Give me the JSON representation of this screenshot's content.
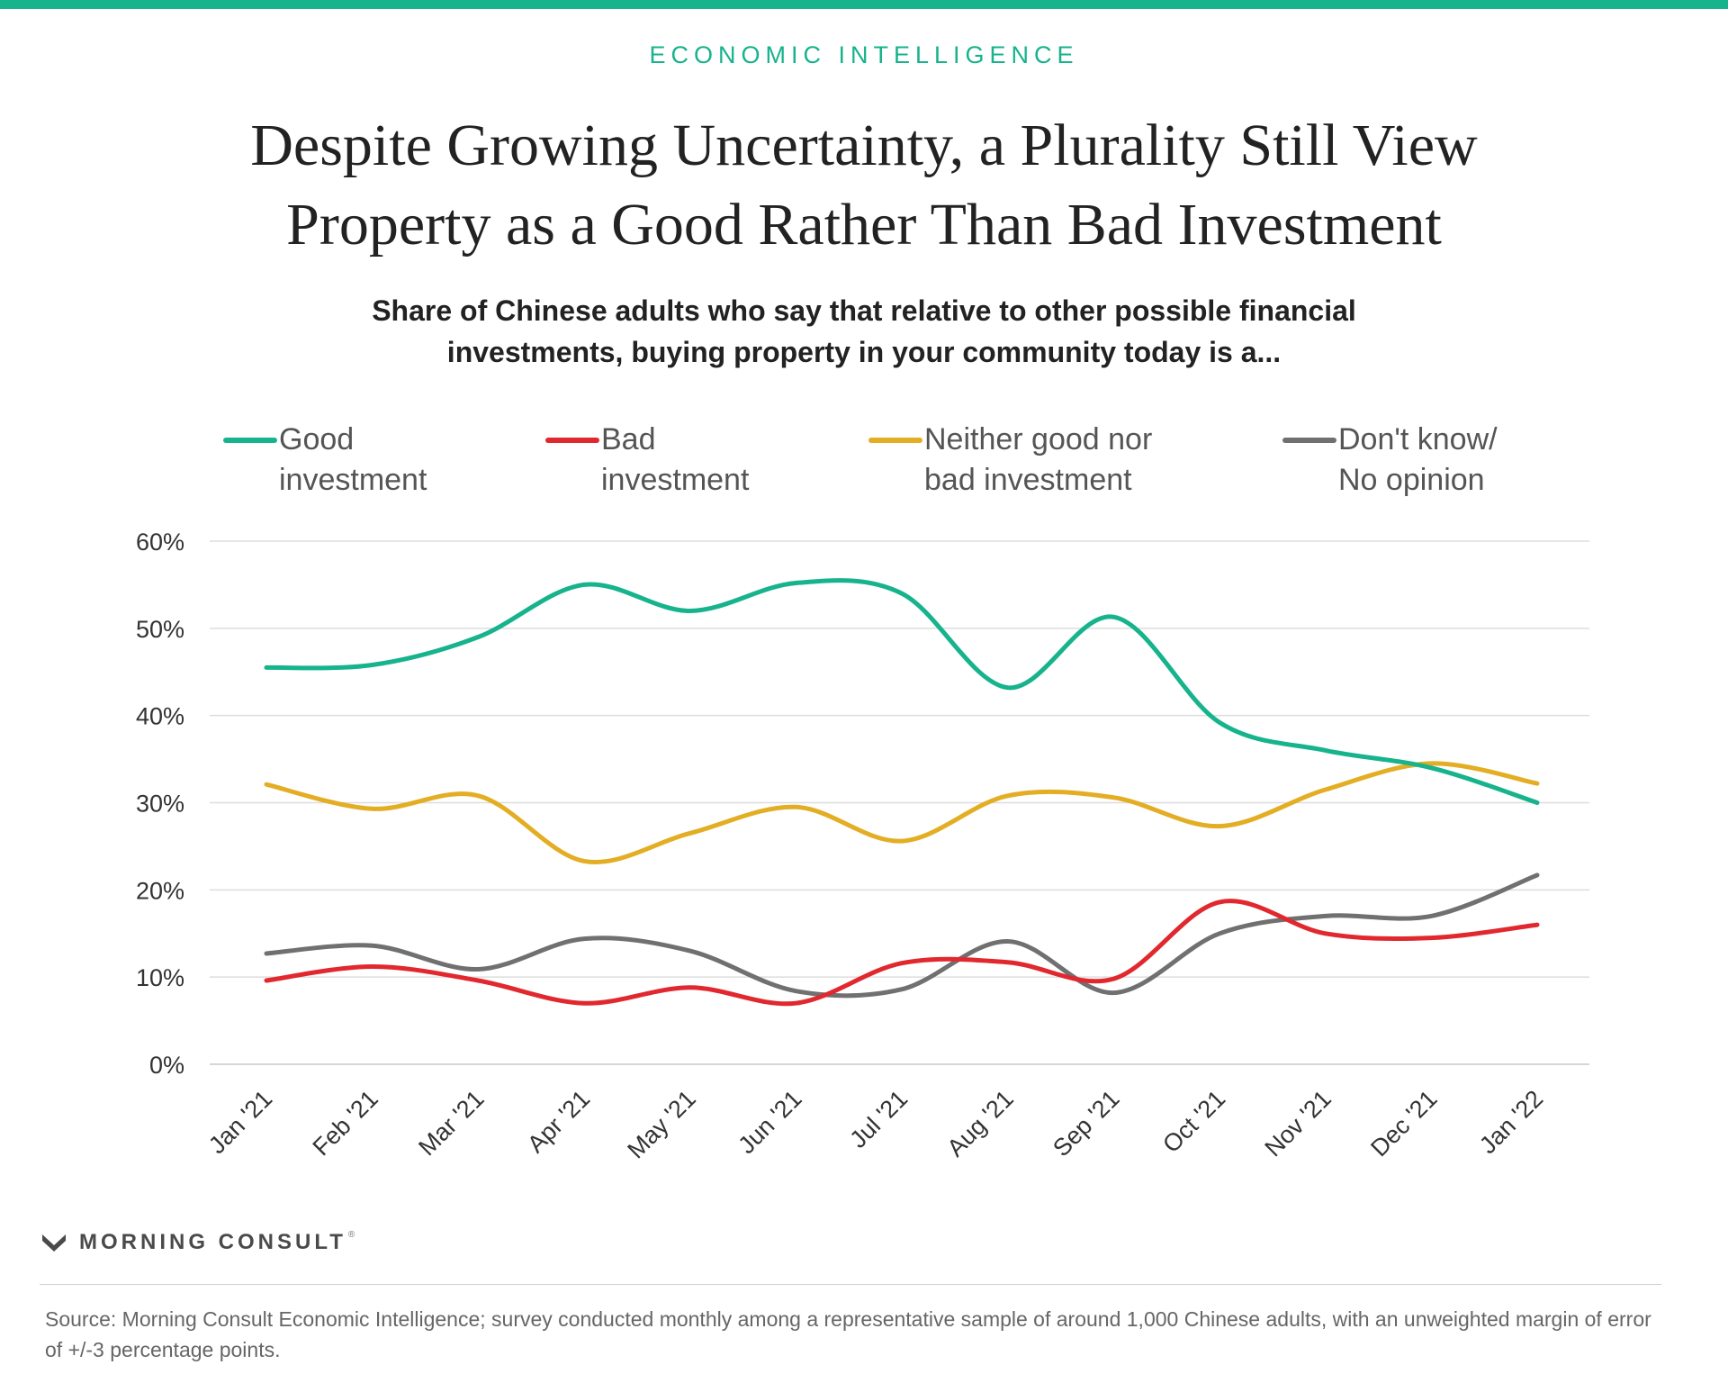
{
  "header": {
    "kicker": "ECONOMIC INTELLIGENCE",
    "title_line1": "Despite Growing Uncertainty, a Plurality Still View",
    "title_line2": "Property as a Good Rather Than Bad Investment",
    "subtitle_line1": "Share of Chinese adults who say that relative to other possible financial",
    "subtitle_line2": "investments, buying property in your community today is a...",
    "accent_color": "#16b38c"
  },
  "legend": [
    {
      "label": "Good\ninvestment",
      "color": "#16b38c"
    },
    {
      "label": "Bad\ninvestment",
      "color": "#e1282f"
    },
    {
      "label": "Neither good nor\nbad investment",
      "color": "#e3ae24"
    },
    {
      "label": "Don't know/\nNo opinion",
      "color": "#707070"
    }
  ],
  "chart_data": {
    "type": "line",
    "x": [
      "Jan '21",
      "Feb '21",
      "Mar '21",
      "Apr '21",
      "May '21",
      "Jun '21",
      "Jul '21",
      "Aug '21",
      "Sep '21",
      "Oct '21",
      "Nov '21",
      "Dec '21",
      "Jan '22"
    ],
    "series": [
      {
        "name": "Good investment",
        "color": "#16b38c",
        "values": [
          45.5,
          45.8,
          49,
          55,
          52,
          55.2,
          54,
          43.2,
          51.3,
          39.2,
          36,
          34,
          30
        ]
      },
      {
        "name": "Bad investment",
        "color": "#e1282f",
        "values": [
          9.6,
          11.2,
          9.6,
          7.0,
          8.8,
          7.0,
          11.6,
          11.7,
          9.8,
          18.6,
          15.0,
          14.5,
          16.0
        ]
      },
      {
        "name": "Neither good nor bad investment",
        "color": "#e3ae24",
        "values": [
          32.1,
          29.3,
          30.8,
          23.3,
          26.5,
          29.5,
          25.6,
          30.8,
          30.6,
          27.3,
          31.5,
          34.5,
          32.2
        ]
      },
      {
        "name": "Don't know/No opinion",
        "color": "#707070",
        "values": [
          12.7,
          13.6,
          10.9,
          14.4,
          13.0,
          8.4,
          8.6,
          14.1,
          8.2,
          15.0,
          17.0,
          17.0,
          21.7
        ]
      }
    ],
    "ylim": [
      0,
      60
    ],
    "yticks": [
      0,
      10,
      20,
      30,
      40,
      50,
      60
    ],
    "ytick_labels": [
      "0%",
      "10%",
      "20%",
      "30%",
      "40%",
      "50%",
      "60%"
    ],
    "grid": true,
    "legend_position": "top"
  },
  "footer": {
    "brand": "MORNING CONSULT",
    "brand_mark": "®",
    "source_text": "Source: Morning Consult Economic Intelligence; survey conducted monthly among a representative sample of around 1,000 Chinese adults, with an unweighted margin of error of +/-3 percentage points."
  }
}
